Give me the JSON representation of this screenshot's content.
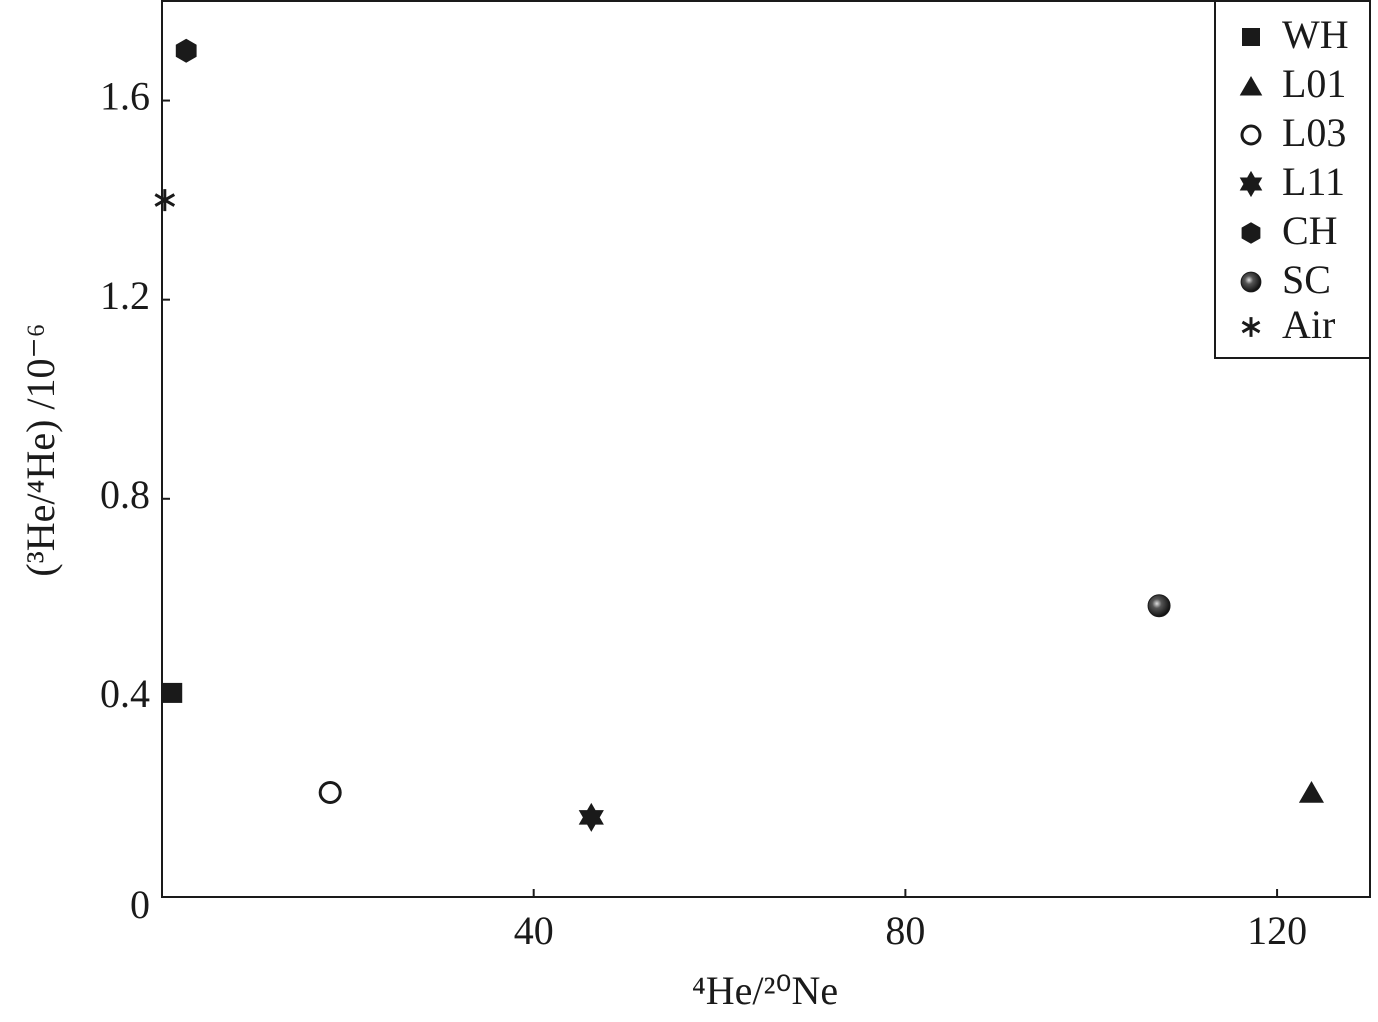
{
  "chart_data": {
    "type": "scatter",
    "x_label": "⁴He/²⁰Ne",
    "y_label": "(³He/⁴He) /10⁻⁶",
    "xlim": [
      0,
      130
    ],
    "ylim": [
      0,
      1.8
    ],
    "xticks": [
      40,
      80,
      120
    ],
    "yticks": [
      0,
      0.4,
      0.8,
      1.2,
      1.6
    ],
    "legend": "top-right",
    "series": [
      {
        "name": "WH",
        "marker": "square",
        "color": "#1a1a1a",
        "x": [
          1.1
        ],
        "y": [
          0.41
        ]
      },
      {
        "name": "L01",
        "marker": "triangle",
        "color": "#1a1a1a",
        "x": [
          123.7
        ],
        "y": [
          0.21
        ]
      },
      {
        "name": "L03",
        "marker": "circle-open",
        "color": "#1a1a1a",
        "x": [
          18.1
        ],
        "y": [
          0.21
        ]
      },
      {
        "name": "L11",
        "marker": "star",
        "color": "#1a1a1a",
        "x": [
          46.2
        ],
        "y": [
          0.16
        ]
      },
      {
        "name": "CH",
        "marker": "hexagon",
        "color": "#1a1a1a",
        "x": [
          2.6
        ],
        "y": [
          1.7
        ]
      },
      {
        "name": "SC",
        "marker": "sphere",
        "color": "#1a1a1a",
        "x": [
          107.3
        ],
        "y": [
          0.585
        ]
      },
      {
        "name": "Air",
        "marker": "asterisk",
        "color": "#1a1a1a",
        "x": [
          0.3
        ],
        "y": [
          1.4
        ]
      }
    ]
  }
}
